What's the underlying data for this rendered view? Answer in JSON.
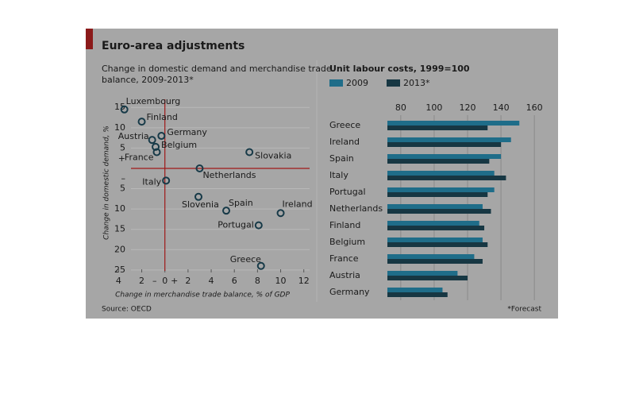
{
  "title": "Euro-area adjustments",
  "source": "Source: OECD",
  "note": "*Forecast",
  "chart_data": [
    {
      "type": "scatter",
      "subtitle": [
        "Change in domestic demand and merchandise trade",
        "balance, 2009-2013*"
      ],
      "xlabel": "Change in merchandise trade balance, % of GDP",
      "ylabel": "Change in domestic demand, %",
      "x_negative_sign": "–",
      "x_positive_sign": "+",
      "y_negative_sign": "–",
      "y_positive_sign": "+",
      "categories": [
        "Luxembourg",
        "Finland",
        "Austria",
        "Germany",
        "Belgium",
        "France",
        "Slovakia",
        "Netherlands",
        "Italy",
        "Slovenia",
        "Spain",
        "Ireland",
        "Portugal",
        "Greece"
      ],
      "x": [
        -3.5,
        -2,
        -1.1,
        -0.3,
        -0.8,
        -0.7,
        7.3,
        3,
        0.1,
        2.9,
        5.3,
        10,
        8.1,
        8.3
      ],
      "values": [
        14.5,
        11.5,
        7,
        8,
        5.3,
        4,
        4,
        0,
        -3,
        -7,
        -10.4,
        -11,
        -14,
        -24
      ],
      "color": "#173a48",
      "xlim": [
        -4.3,
        12.5
      ],
      "ylim": [
        -26,
        17
      ],
      "xticks": [
        {
          "value": -4,
          "label": "4"
        },
        {
          "value": -2,
          "label": "2"
        },
        0,
        2,
        4,
        6,
        8,
        10,
        12
      ],
      "yticks": [
        15,
        10,
        5,
        {
          "value": -5,
          "label": "5"
        },
        {
          "value": -10,
          "label": "10"
        },
        {
          "value": -15,
          "label": "15"
        },
        {
          "value": -20,
          "label": "20"
        },
        {
          "value": -25,
          "label": "25"
        }
      ],
      "grid": true
    },
    {
      "type": "hbar",
      "title": "Unit labour costs, 1999=100",
      "categories": [
        "Greece",
        "Ireland",
        "Spain",
        "Italy",
        "Portugal",
        "Netherlands",
        "Finland",
        "Belgium",
        "France",
        "Austria",
        "Germany"
      ],
      "series": [
        {
          "name": "2009",
          "color": "#1f6d89",
          "values": [
            151,
            146,
            140,
            136,
            136,
            129,
            127,
            129,
            124,
            114,
            105
          ]
        },
        {
          "name": "2013*",
          "color": "#173743",
          "values": [
            132,
            140,
            133,
            143,
            132,
            134,
            130,
            132,
            129,
            120,
            108
          ]
        }
      ],
      "xlim": [
        72,
        168
      ],
      "xticks": [
        80,
        100,
        120,
        140,
        160
      ],
      "grid": true
    }
  ]
}
